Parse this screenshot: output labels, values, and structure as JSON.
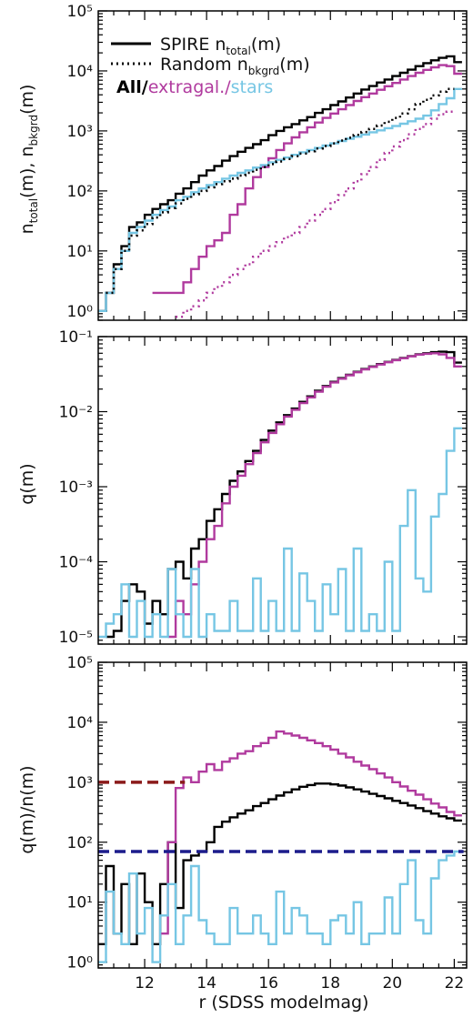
{
  "figure": {
    "xlabel": "r (SDSS modelmag)",
    "xlim": [
      10.5,
      22.4
    ],
    "xticks": [
      "12",
      "14",
      "16",
      "18",
      "20",
      "22"
    ]
  },
  "colors": {
    "all": "#000000",
    "extragal": "#b03a9e",
    "stars": "#76c6e4",
    "extragal_ref": "#8b1a1a",
    "stars_ref": "#1c1c8c"
  },
  "legend": {
    "solid_label": "SPIRE n",
    "solid_sub": "total",
    "solid_tail": "(m)",
    "dotted_label": "Random n",
    "dotted_sub": "bkgrd",
    "dotted_tail": "(m)",
    "all": "All",
    "slash": "/",
    "extragal": "extragal.",
    "stars": "stars"
  },
  "chart_data": [
    {
      "type": "line",
      "panel": "top",
      "ylabel": "n_total(m), n_bkgrd(m)",
      "yscale": "log",
      "ylim": [
        0.7,
        100000
      ],
      "yticks": [
        1,
        10,
        100,
        1000,
        10000,
        100000
      ],
      "bin_edges": [
        10.5,
        10.75,
        11.0,
        11.25,
        11.5,
        11.75,
        12.0,
        12.25,
        12.5,
        12.75,
        13.0,
        13.25,
        13.5,
        13.75,
        14.0,
        14.25,
        14.5,
        14.75,
        15.0,
        15.25,
        15.5,
        15.75,
        16.0,
        16.25,
        16.5,
        16.75,
        17.0,
        17.25,
        17.5,
        17.75,
        18.0,
        18.25,
        18.5,
        18.75,
        19.0,
        19.25,
        19.5,
        19.75,
        20.0,
        20.25,
        20.5,
        20.75,
        21.0,
        21.25,
        21.5,
        21.75,
        22.0,
        22.25
      ],
      "series": [
        {
          "name": "SPIRE n_total — All",
          "style": "solid",
          "color_key": "all",
          "values": [
            1.0,
            2.0,
            6.0,
            12.0,
            25.0,
            30.0,
            40.0,
            50.0,
            60.0,
            70.0,
            90.0,
            110.0,
            140.0,
            180.0,
            220.0,
            260.0,
            320.0,
            380.0,
            450.0,
            520.0,
            600.0,
            700.0,
            850.0,
            1000.0,
            1150.0,
            1300.0,
            1500.0,
            1700.0,
            2000.0,
            2300.0,
            2700.0,
            3100.0,
            3600.0,
            4200.0,
            4900.0,
            5600.0,
            6400.0,
            7200.0,
            8200.0,
            9300.0,
            10500.0,
            12000.0,
            13500.0,
            15000.0,
            16500.0,
            17500.0,
            14000.0
          ]
        },
        {
          "name": "SPIRE n_total — extragal.",
          "style": "solid",
          "color_key": "extragal",
          "values": [
            null,
            null,
            null,
            null,
            null,
            null,
            null,
            2.0,
            2.0,
            2.0,
            2.0,
            3.0,
            5.0,
            8.0,
            12.0,
            15.0,
            20.0,
            40.0,
            60.0,
            110.0,
            170.0,
            250.0,
            350.0,
            480.0,
            620.0,
            780.0,
            950.0,
            1150.0,
            1380.0,
            1650.0,
            1950.0,
            2300.0,
            2700.0,
            3150.0,
            3650.0,
            4200.0,
            4850.0,
            5550.0,
            6300.0,
            7200.0,
            8200.0,
            9300.0,
            10400.0,
            11500.0,
            12500.0,
            12000.0,
            9000.0
          ]
        },
        {
          "name": "SPIRE n_total — stars",
          "style": "solid",
          "color_key": "stars",
          "values": [
            1.0,
            2.0,
            5.0,
            10.0,
            20.0,
            25.0,
            32.0,
            40.0,
            48.0,
            55.0,
            70.0,
            80.0,
            95.0,
            110.0,
            125.0,
            140.0,
            160.0,
            180.0,
            200.0,
            220.0,
            245.0,
            270.0,
            300.0,
            330.0,
            360.0,
            400.0,
            440.0,
            480.0,
            520.0,
            570.0,
            620.0,
            680.0,
            740.0,
            800.0,
            870.0,
            950.0,
            1020.0,
            1110.0,
            1210.0,
            1320.0,
            1450.0,
            1600.0,
            1800.0,
            2200.0,
            2800.0,
            3500.0,
            5000.0
          ]
        },
        {
          "name": "Random n_bkgrd — All",
          "style": "dotted",
          "color_key": "all",
          "values": [
            null,
            2.0,
            5.0,
            10.0,
            18.0,
            22.0,
            28.0,
            36.0,
            44.0,
            52.0,
            62.0,
            74.0,
            88.0,
            100.0,
            115.0,
            130.0,
            145.0,
            160.0,
            180.0,
            200.0,
            225.0,
            250.0,
            280.0,
            310.0,
            340.0,
            380.0,
            420.0,
            460.0,
            510.0,
            560.0,
            620.0,
            690.0,
            770.0,
            860.0,
            960.0,
            1080.0,
            1230.0,
            1420.0,
            1650.0,
            1950.0,
            2300.0,
            2800.0,
            3300.0,
            3900.0,
            4500.0,
            5000.0,
            null
          ]
        },
        {
          "name": "Random n_bkgrd — extragal.",
          "style": "dotted",
          "color_key": "extragal",
          "values": [
            null,
            null,
            null,
            null,
            null,
            null,
            null,
            null,
            null,
            null,
            0.8,
            1.0,
            1.2,
            1.5,
            2.0,
            2.5,
            3.0,
            4.0,
            5.0,
            6.0,
            8.0,
            10.0,
            12.0,
            14.0,
            17.0,
            20.0,
            25.0,
            32.0,
            40.0,
            50.0,
            65.0,
            85.0,
            110.0,
            145.0,
            190.0,
            250.0,
            330.0,
            430.0,
            550.0,
            700.0,
            880.0,
            1080.0,
            1300.0,
            1600.0,
            1900.0,
            2100.0,
            null
          ]
        }
      ]
    },
    {
      "type": "line",
      "panel": "middle",
      "ylabel": "q(m)",
      "yscale": "log",
      "ylim": [
        8e-06,
        0.1
      ],
      "yticks": [
        1e-05,
        0.0001,
        0.001,
        0.01,
        0.1
      ],
      "bin_edges": [
        10.5,
        10.75,
        11.0,
        11.25,
        11.5,
        11.75,
        12.0,
        12.25,
        12.5,
        12.75,
        13.0,
        13.25,
        13.5,
        13.75,
        14.0,
        14.25,
        14.5,
        14.75,
        15.0,
        15.25,
        15.5,
        15.75,
        16.0,
        16.25,
        16.5,
        16.75,
        17.0,
        17.25,
        17.5,
        17.75,
        18.0,
        18.25,
        18.5,
        18.75,
        19.0,
        19.25,
        19.5,
        19.75,
        20.0,
        20.25,
        20.5,
        20.75,
        21.0,
        21.25,
        21.5,
        21.75,
        22.0,
        22.25
      ],
      "series": [
        {
          "name": "All",
          "color_key": "all",
          "values": [
            null,
            1e-05,
            1.2e-05,
            3e-05,
            5e-05,
            4e-05,
            1.5e-05,
            3e-05,
            2e-05,
            8e-05,
            0.0001,
            6e-05,
            0.00015,
            0.0002,
            0.00035,
            0.0005,
            0.0008,
            0.0012,
            0.0016,
            0.0022,
            0.003,
            0.0042,
            0.0056,
            0.0072,
            0.009,
            0.011,
            0.0135,
            0.016,
            0.019,
            0.022,
            0.025,
            0.028,
            0.031,
            0.034,
            0.037,
            0.04,
            0.043,
            0.046,
            0.049,
            0.052,
            0.055,
            0.058,
            0.06,
            0.062,
            0.063,
            0.062,
            0.045
          ]
        },
        {
          "name": "extragal.",
          "color_key": "extragal",
          "values": [
            null,
            null,
            null,
            null,
            null,
            null,
            null,
            null,
            null,
            1e-05,
            3e-05,
            2e-05,
            5e-05,
            0.0001,
            0.0002,
            0.0003,
            0.0006,
            0.001,
            0.0014,
            0.002,
            0.0028,
            0.0039,
            0.0052,
            0.0068,
            0.0086,
            0.0106,
            0.013,
            0.0155,
            0.0185,
            0.0215,
            0.0245,
            0.0275,
            0.0305,
            0.0335,
            0.0365,
            0.0395,
            0.0425,
            0.0455,
            0.0485,
            0.0515,
            0.0545,
            0.0575,
            0.059,
            0.06,
            0.058,
            0.052,
            0.04
          ]
        },
        {
          "name": "stars",
          "color_key": "stars",
          "values": [
            1e-05,
            1.5e-05,
            2e-05,
            5e-05,
            1e-05,
            3e-05,
            1e-05,
            2e-05,
            1e-05,
            8e-05,
            2e-05,
            1e-05,
            8e-05,
            1e-05,
            2e-05,
            1.2e-05,
            1.2e-05,
            3e-05,
            1.2e-05,
            1.2e-05,
            6e-05,
            1.2e-05,
            3e-05,
            1.2e-05,
            0.00015,
            1.2e-05,
            7e-05,
            3e-05,
            1.2e-05,
            5e-05,
            2e-05,
            8e-05,
            1.2e-05,
            0.00015,
            1.2e-05,
            2e-05,
            1.2e-05,
            0.0001,
            1.2e-05,
            0.0003,
            0.0009,
            6e-05,
            4e-05,
            0.0004,
            0.0008,
            0.003,
            0.006
          ]
        }
      ]
    },
    {
      "type": "line",
      "panel": "bottom",
      "ylabel": "q(m)/n(m)",
      "yscale": "log",
      "ylim": [
        0.8,
        100000
      ],
      "yticks": [
        1,
        10,
        100,
        1000,
        10000,
        100000
      ],
      "bin_edges": [
        10.5,
        10.75,
        11.0,
        11.25,
        11.5,
        11.75,
        12.0,
        12.25,
        12.5,
        12.75,
        13.0,
        13.25,
        13.5,
        13.75,
        14.0,
        14.25,
        14.5,
        14.75,
        15.0,
        15.25,
        15.5,
        15.75,
        16.0,
        16.25,
        16.5,
        16.75,
        17.0,
        17.25,
        17.5,
        17.75,
        18.0,
        18.25,
        18.5,
        18.75,
        19.0,
        19.25,
        19.5,
        19.75,
        20.0,
        20.25,
        20.5,
        20.75,
        21.0,
        21.25,
        21.5,
        21.75,
        22.0,
        22.25
      ],
      "series": [
        {
          "name": "All",
          "color_key": "all",
          "values": [
            2.0,
            40.0,
            3.0,
            20.0,
            2.0,
            30.0,
            10.0,
            2.0,
            20.0,
            100.0,
            8.0,
            50.0,
            60.0,
            70.0,
            100.0,
            180.0,
            220.0,
            260.0,
            300.0,
            340.0,
            400.0,
            450.0,
            520.0,
            600.0,
            680.0,
            760.0,
            840.0,
            900.0,
            950.0,
            950.0,
            920.0,
            880.0,
            820.0,
            760.0,
            700.0,
            640.0,
            590.0,
            540.0,
            490.0,
            450.0,
            410.0,
            370.0,
            330.0,
            300.0,
            270.0,
            250.0,
            230.0
          ]
        },
        {
          "name": "extragal.",
          "color_key": "extragal",
          "values": [
            null,
            null,
            null,
            null,
            null,
            null,
            null,
            null,
            3.0,
            100.0,
            800.0,
            1200.0,
            1000.0,
            1500.0,
            2000.0,
            1600.0,
            2200.0,
            2500.0,
            3000.0,
            3300.0,
            4000.0,
            4500.0,
            5500.0,
            7000.0,
            6500.0,
            6000.0,
            5500.0,
            5000.0,
            4500.0,
            4000.0,
            3500.0,
            3000.0,
            2600.0,
            2200.0,
            1900.0,
            1650.0,
            1400.0,
            1200.0,
            1000.0,
            850.0,
            720.0,
            620.0,
            520.0,
            440.0,
            380.0,
            320.0,
            280.0
          ]
        },
        {
          "name": "stars",
          "color_key": "stars",
          "values": [
            1.0,
            15.0,
            3.0,
            2.0,
            30.0,
            3.0,
            8.0,
            1.0,
            6.0,
            20.0,
            2.0,
            6.0,
            40.0,
            5.0,
            3.0,
            2.0,
            2.0,
            8.0,
            3.0,
            3.0,
            6.0,
            3.0,
            2.0,
            15.0,
            3.0,
            8.0,
            6.0,
            3.0,
            3.0,
            2.0,
            5.0,
            6.0,
            3.0,
            10.0,
            2.0,
            3.0,
            3.0,
            12.0,
            3.0,
            20.0,
            50.0,
            5.0,
            3.0,
            25.0,
            50.0,
            60.0,
            70.0
          ]
        },
        {
          "name": "extragal. reference",
          "style": "dashed",
          "color_key": "extragal_ref",
          "x_range": [
            10.5,
            13.3
          ],
          "value": 1000
        },
        {
          "name": "stars reference",
          "style": "dashed",
          "color_key": "stars_ref",
          "x_range": [
            10.5,
            22.3
          ],
          "value": 70
        }
      ]
    }
  ]
}
